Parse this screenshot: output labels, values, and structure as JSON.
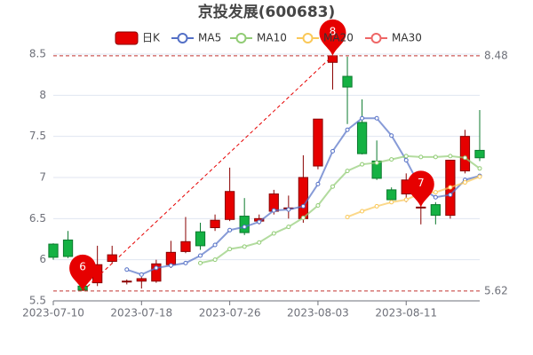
{
  "chart_data": {
    "type": "candlestick",
    "title": "京投发展(600683)",
    "categories": [
      "2023-07-10",
      null,
      null,
      null,
      null,
      null,
      "2023-07-18",
      null,
      null,
      null,
      null,
      null,
      "2023-07-26",
      null,
      null,
      null,
      null,
      null,
      "2023-08-03",
      null,
      null,
      null,
      null,
      null,
      "2023-08-11",
      null,
      null,
      null,
      null,
      null
    ],
    "ylim": [
      5.5,
      8.5
    ],
    "yticks": [
      5.5,
      6,
      6.5,
      7,
      7.5,
      8,
      8.5
    ],
    "grid": true,
    "up_color": "#e60000",
    "down_color": "#14b143",
    "series": [
      {
        "name": "日K",
        "type": "candlestick",
        "color": "#e60000",
        "values": [
          [
            6.19,
            6.03,
            6.0,
            6.2
          ],
          [
            6.24,
            6.04,
            6.02,
            6.35
          ],
          [
            5.68,
            5.63,
            5.62,
            5.72
          ],
          [
            5.72,
            5.94,
            5.68,
            6.17
          ],
          [
            5.98,
            6.06,
            5.95,
            6.17
          ],
          [
            5.73,
            5.74,
            5.7,
            5.76
          ],
          [
            5.74,
            5.77,
            5.65,
            5.79
          ],
          [
            5.74,
            5.95,
            5.72,
            6.0
          ],
          [
            5.94,
            6.09,
            5.9,
            6.23
          ],
          [
            6.1,
            6.22,
            6.08,
            6.52
          ],
          [
            6.34,
            6.17,
            6.12,
            6.45
          ],
          [
            6.39,
            6.48,
            6.35,
            6.55
          ],
          [
            6.49,
            6.83,
            6.47,
            7.12
          ],
          [
            6.53,
            6.33,
            6.3,
            6.75
          ],
          [
            6.47,
            6.5,
            6.43,
            6.55
          ],
          [
            6.59,
            6.8,
            6.55,
            6.85
          ],
          [
            6.62,
            6.63,
            6.5,
            6.78
          ],
          [
            6.5,
            7.0,
            6.45,
            7.27
          ],
          [
            7.14,
            7.71,
            7.1,
            7.71
          ],
          [
            8.4,
            8.48,
            8.07,
            8.48
          ],
          [
            8.23,
            8.1,
            7.65,
            8.47
          ],
          [
            7.67,
            7.29,
            7.28,
            7.95
          ],
          [
            7.2,
            6.99,
            6.97,
            7.45
          ],
          [
            6.85,
            6.73,
            6.7,
            6.88
          ],
          [
            6.8,
            6.97,
            6.7,
            7.05
          ],
          [
            6.63,
            6.64,
            6.43,
            6.66
          ],
          [
            6.67,
            6.54,
            6.43,
            6.7
          ],
          [
            6.54,
            7.21,
            6.5,
            7.21
          ],
          [
            7.08,
            7.5,
            7.05,
            7.58
          ],
          [
            7.33,
            7.24,
            7.2,
            7.82
          ]
        ]
      },
      {
        "name": "MA5",
        "type": "line",
        "color": "#5470c6",
        "values": [
          null,
          null,
          null,
          null,
          null,
          5.88,
          5.82,
          5.9,
          5.93,
          5.96,
          6.05,
          6.18,
          6.36,
          6.4,
          6.46,
          6.6,
          6.61,
          6.65,
          6.92,
          7.32,
          7.58,
          7.72,
          7.72,
          7.51,
          7.21,
          6.87,
          6.76,
          6.79,
          6.97,
          7.02
        ]
      },
      {
        "name": "MA10",
        "type": "line",
        "color": "#91cc75",
        "values": [
          null,
          null,
          null,
          null,
          null,
          null,
          null,
          null,
          null,
          null,
          5.96,
          6.0,
          6.13,
          6.16,
          6.21,
          6.32,
          6.4,
          6.51,
          6.66,
          6.89,
          7.08,
          7.16,
          7.18,
          7.22,
          7.26,
          7.25,
          7.25,
          7.26,
          7.24,
          7.11
        ]
      },
      {
        "name": "MA20",
        "type": "line",
        "color": "#fac858",
        "values": [
          null,
          null,
          null,
          null,
          null,
          null,
          null,
          null,
          null,
          null,
          null,
          null,
          null,
          null,
          null,
          null,
          null,
          null,
          null,
          null,
          6.52,
          6.59,
          6.65,
          6.7,
          6.73,
          6.81,
          6.82,
          6.88,
          6.94,
          7.01
        ]
      },
      {
        "name": "MA30",
        "type": "line",
        "color": "#ee6666",
        "values": [
          null,
          null,
          null,
          null,
          null,
          null,
          null,
          null,
          null,
          null,
          null,
          null,
          null,
          null,
          null,
          null,
          null,
          null,
          null,
          null,
          null,
          null,
          null,
          null,
          null,
          null,
          null,
          null,
          null,
          null
        ]
      }
    ],
    "mark_points": [
      {
        "label": "8",
        "value": 8.48
      },
      {
        "label": "6",
        "value": 5.62
      },
      {
        "label": "7",
        "value": 6.64
      }
    ],
    "mark_lines": [
      8.48,
      5.62
    ]
  }
}
